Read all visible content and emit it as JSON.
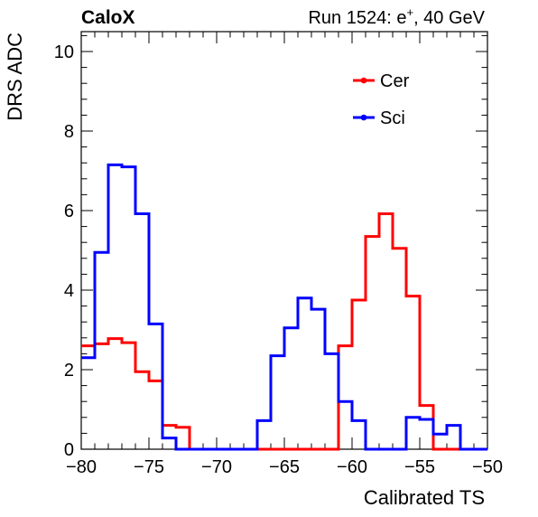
{
  "header": {
    "left": "CaloX",
    "run_prefix": "Run 1524: e",
    "run_sup": "+",
    "run_suffix": ", 40 GeV"
  },
  "chart_data": {
    "type": "line",
    "xlabel": "Calibrated TS",
    "ylabel": "DRS ADC",
    "xlim": [
      -80,
      -50
    ],
    "ylim": [
      0,
      10.5
    ],
    "grid": false,
    "legend_position": "top-right",
    "x_ticks": [
      {
        "value": -80,
        "label": "−80"
      },
      {
        "value": -75,
        "label": "−75"
      },
      {
        "value": -70,
        "label": "−70"
      },
      {
        "value": -65,
        "label": "−65"
      },
      {
        "value": -60,
        "label": "−60"
      },
      {
        "value": -55,
        "label": "−55"
      },
      {
        "value": -50,
        "label": "−50"
      }
    ],
    "y_ticks": [
      {
        "value": 0,
        "label": "0"
      },
      {
        "value": 2,
        "label": "2"
      },
      {
        "value": 4,
        "label": "4"
      },
      {
        "value": 6,
        "label": "6"
      },
      {
        "value": 8,
        "label": "8"
      },
      {
        "value": 10,
        "label": "10"
      }
    ],
    "bin_edges": [
      -80,
      -79,
      -78,
      -77,
      -76,
      -75,
      -74,
      -73,
      -72,
      -71,
      -70,
      -69,
      -68,
      -67,
      -66,
      -65,
      -64,
      -63,
      -62,
      -61,
      -60,
      -59,
      -58,
      -57,
      -56,
      -55,
      -54,
      -53,
      -52,
      -51,
      -50
    ],
    "series": [
      {
        "name": "Cer",
        "color": "#ff0000",
        "values": [
          2.6,
          2.65,
          2.78,
          2.68,
          1.95,
          1.72,
          0.6,
          0.55,
          0,
          0,
          0,
          0,
          0,
          0,
          0,
          0,
          0,
          0,
          0,
          2.6,
          3.75,
          5.35,
          5.92,
          5.05,
          3.85,
          1.1,
          0,
          0,
          0,
          0
        ]
      },
      {
        "name": "Sci",
        "color": "#0000ff",
        "values": [
          2.3,
          4.95,
          7.15,
          7.1,
          5.92,
          3.15,
          0.28,
          0,
          0,
          0,
          0,
          0,
          0,
          0.72,
          2.35,
          3.05,
          3.8,
          3.52,
          2.4,
          1.2,
          0.72,
          0,
          0,
          0,
          0.8,
          0.75,
          0.38,
          0.6,
          0,
          0
        ]
      }
    ]
  }
}
